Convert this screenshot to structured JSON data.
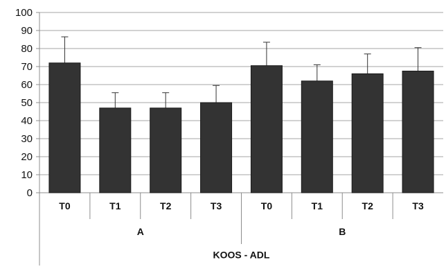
{
  "chart_data": {
    "type": "bar",
    "categories": [
      "T0",
      "T1",
      "T2",
      "T3",
      "T0",
      "T1",
      "T2",
      "T3"
    ],
    "groups": [
      {
        "label": "A",
        "categories": [
          "T0",
          "T1",
          "T2",
          "T3"
        ]
      },
      {
        "label": "B",
        "categories": [
          "T0",
          "T1",
          "T2",
          "T3"
        ]
      }
    ],
    "values": [
      72,
      47,
      47,
      50,
      70.5,
      62,
      66,
      67.5
    ],
    "error_upper": [
      86.5,
      55.5,
      55.5,
      59.5,
      83.5,
      71,
      77,
      80.5
    ],
    "xlabel": "KOOS - ADL",
    "ylabel": "",
    "ylim": [
      0,
      100
    ],
    "yticks": [
      0,
      10,
      20,
      30,
      40,
      50,
      60,
      70,
      80,
      90,
      100
    ],
    "grid": true,
    "legend": "none",
    "bar_color": "#333333",
    "grid_color": "#a6a6a6"
  }
}
